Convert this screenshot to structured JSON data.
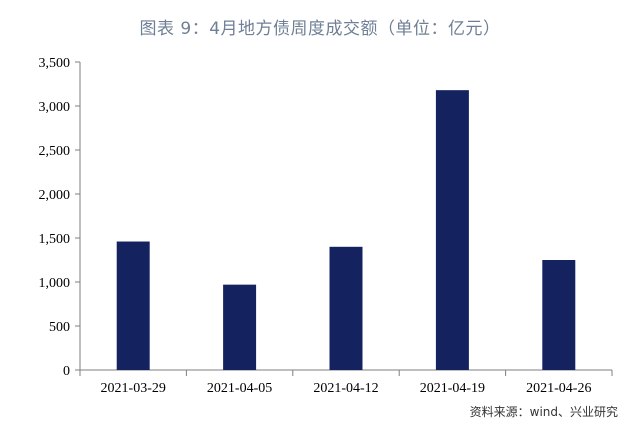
{
  "title": "图表 9：4月地方债周度成交额（单位：亿元）",
  "source": "资料来源：wind、兴业研究",
  "colors": {
    "bar": "#14235f",
    "axis": "#7f7f7f"
  },
  "chart_data": {
    "type": "bar",
    "title": "图表 9：4月地方债周度成交额（单位：亿元）",
    "categories": [
      "2021-03-29",
      "2021-04-05",
      "2021-04-12",
      "2021-04-19",
      "2021-04-26"
    ],
    "values": [
      1460,
      970,
      1400,
      3180,
      1250
    ],
    "ylim": [
      0,
      3500
    ],
    "yticks": [
      0,
      500,
      1000,
      1500,
      2000,
      2500,
      3000,
      3500
    ],
    "ytick_labels": [
      "0",
      "500",
      "1,000",
      "1,500",
      "2,000",
      "2,500",
      "3,000",
      "3,500"
    ],
    "xlabel": "",
    "ylabel": "",
    "grid": false,
    "legend": "none"
  }
}
